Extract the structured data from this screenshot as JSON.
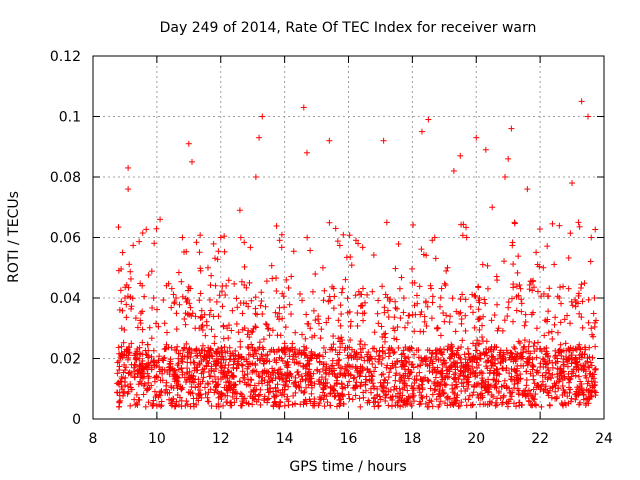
{
  "chart_data": {
    "type": "scatter",
    "title": "Day 249 of 2014, Rate Of TEC Index for receiver warn",
    "xlabel": "GPS time / hours",
    "ylabel": "ROTI / TECUs",
    "xlim": [
      8,
      24
    ],
    "ylim": [
      0,
      0.12
    ],
    "xticks": [
      8,
      10,
      12,
      14,
      16,
      18,
      20,
      22,
      24
    ],
    "xtick_labels": [
      "8",
      "10",
      "12",
      "14",
      "16",
      "18",
      "20",
      "22",
      "24"
    ],
    "yticks": [
      0,
      0.02,
      0.04,
      0.06,
      0.08,
      0.1,
      0.12
    ],
    "ytick_labels": [
      "0",
      "0.02",
      "0.04",
      "0.06",
      "0.08",
      "0.1",
      "0.12"
    ],
    "grid": true,
    "marker": "+",
    "series": [
      {
        "name": "ROTI",
        "color": "#ff0000",
        "x": [
          8.8,
          8.9,
          9.0,
          9.1,
          9.1,
          9.2,
          9.3,
          9.5,
          9.7,
          9.9,
          10.1,
          10.2,
          10.3,
          10.6,
          10.8,
          11.0,
          11.1,
          11.2,
          11.4,
          11.6,
          11.8,
          12.0,
          12.2,
          12.4,
          12.6,
          12.9,
          13.1,
          13.2,
          13.3,
          13.3,
          13.5,
          13.8,
          14.0,
          14.3,
          14.6,
          14.7,
          14.8,
          15.0,
          15.2,
          15.4,
          15.6,
          15.8,
          16.0,
          16.3,
          16.5,
          16.7,
          17.0,
          17.1,
          17.2,
          17.4,
          17.7,
          18.0,
          18.3,
          18.5,
          18.7,
          18.8,
          18.9,
          19.1,
          19.3,
          19.5,
          19.7,
          19.9,
          20.0,
          20.1,
          20.3,
          20.5,
          20.7,
          20.9,
          21.0,
          21.1,
          21.2,
          21.4,
          21.6,
          21.9,
          22.1,
          22.3,
          22.6,
          22.8,
          23.0,
          23.2,
          23.3,
          23.5,
          23.6,
          23.6,
          23.7
        ],
        "y": [
          0.012,
          0.03,
          0.04,
          0.076,
          0.083,
          0.025,
          0.018,
          0.035,
          0.015,
          0.04,
          0.066,
          0.02,
          0.012,
          0.04,
          0.06,
          0.091,
          0.085,
          0.03,
          0.015,
          0.05,
          0.025,
          0.06,
          0.03,
          0.018,
          0.069,
          0.045,
          0.08,
          0.093,
          0.1,
          0.02,
          0.03,
          0.015,
          0.025,
          0.012,
          0.103,
          0.088,
          0.03,
          0.02,
          0.05,
          0.092,
          0.063,
          0.025,
          0.015,
          0.058,
          0.035,
          0.02,
          0.012,
          0.092,
          0.065,
          0.03,
          0.018,
          0.045,
          0.095,
          0.099,
          0.06,
          0.03,
          0.015,
          0.05,
          0.082,
          0.087,
          0.06,
          0.025,
          0.093,
          0.04,
          0.089,
          0.07,
          0.03,
          0.08,
          0.086,
          0.096,
          0.065,
          0.02,
          0.076,
          0.03,
          0.05,
          0.015,
          0.04,
          0.025,
          0.078,
          0.065,
          0.105,
          0.1,
          0.06,
          0.03,
          0.04
        ]
      }
    ]
  }
}
